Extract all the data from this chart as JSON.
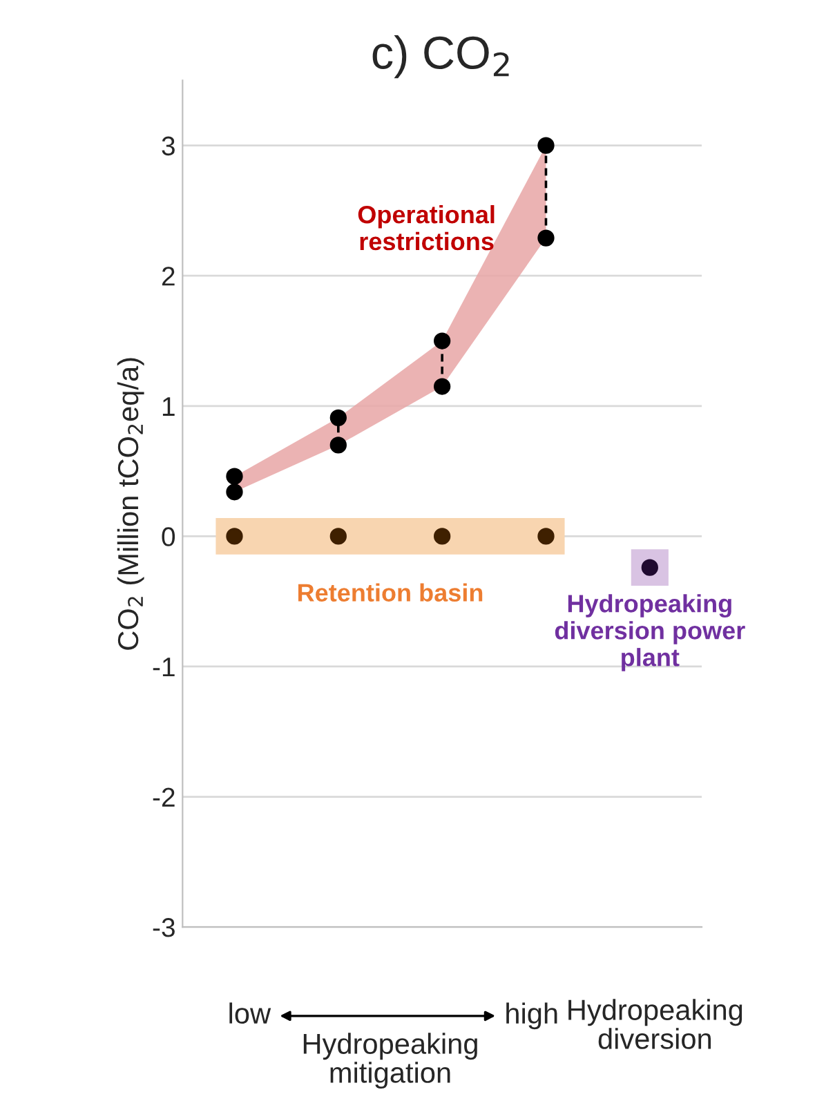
{
  "chart_data": {
    "type": "scatter",
    "title": "c) CO$_{2}$",
    "ylabel": "CO$_{2}$ (Million tCO$_{2}$eq/a)",
    "categories": [
      null,
      null,
      null,
      null,
      null
    ],
    "series": [
      {
        "name": "Operational\nrestrictions",
        "color": "#000000",
        "values": [
          0.46,
          0.91,
          1.5,
          3.0,
          null
        ],
        "lower": [
          0.34,
          0.7,
          1.15,
          2.29,
          null
        ],
        "upper": [
          0.46,
          0.91,
          1.5,
          3.0,
          null
        ]
      },
      {
        "color": "#000000",
        "values": [
          0.34,
          0.7,
          1.15,
          2.29,
          null
        ]
      },
      {
        "name": "Retention basin",
        "color": "#3f2000",
        "values": [
          0,
          0,
          0,
          0,
          null
        ]
      },
      {
        "name": "Hydropeaking\ndiversion power\nplant",
        "color": "#200a30",
        "values": [
          null,
          null,
          null,
          null,
          -0.24
        ]
      }
    ],
    "ylim": [
      -3,
      3.5
    ],
    "yticks": [
      -3,
      -2,
      -1,
      0,
      1,
      2,
      3
    ],
    "grid": "y",
    "marker": "circle",
    "annotations": [
      "low",
      "high",
      "Hydropeaking\nmitigation",
      "Hydropeaking\ndiversion"
    ]
  }
}
